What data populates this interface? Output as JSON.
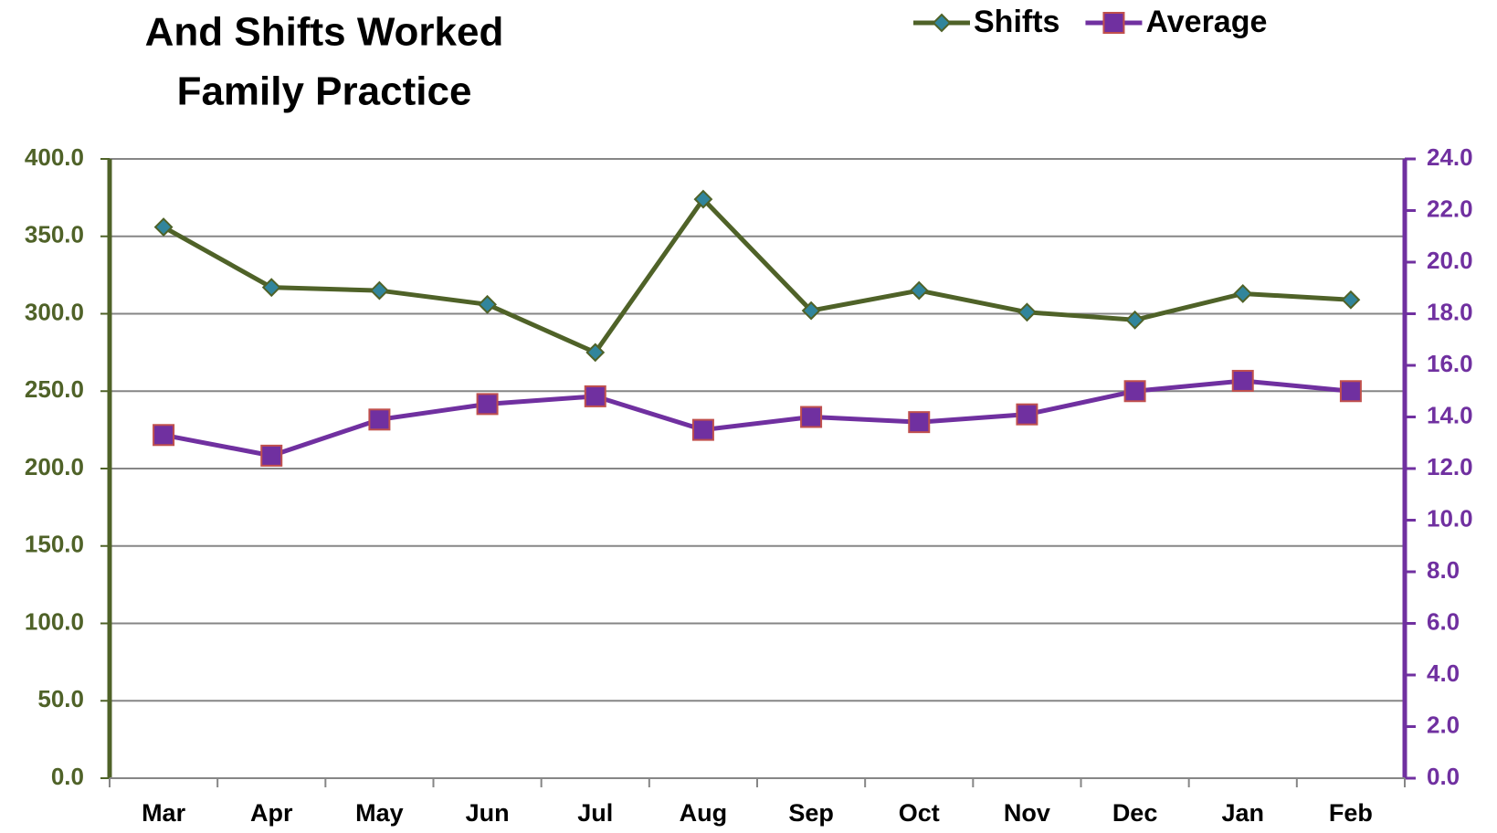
{
  "chart_data": {
    "type": "line",
    "title": [
      "And Shifts Worked",
      "Family Practice"
    ],
    "categories": [
      "Mar",
      "Apr",
      "May",
      "Jun",
      "Jul",
      "Aug",
      "Sep",
      "Oct",
      "Nov",
      "Dec",
      "Jan",
      "Feb"
    ],
    "series": [
      {
        "name": "Shifts",
        "color": "#4f6228",
        "marker_color": "#31859c",
        "marker": "diamond",
        "axis": "y",
        "values": [
          356,
          317,
          315,
          306,
          275,
          374,
          302,
          315,
          301,
          296,
          313,
          309
        ]
      },
      {
        "name": "Average",
        "color": "#7030a0",
        "marker_color": "#c0504d",
        "marker": "square",
        "axis": "y2",
        "values": [
          13.3,
          12.5,
          13.9,
          14.5,
          14.8,
          13.5,
          14.0,
          13.8,
          14.1,
          15.0,
          15.4,
          15.0
        ]
      }
    ],
    "ylim": [
      0,
      400
    ],
    "yticks": [
      {
        "value": 0,
        "label": "0.0"
      },
      {
        "value": 50,
        "label": "50.0"
      },
      {
        "value": 100,
        "label": "100.0"
      },
      {
        "value": 150,
        "label": "150.0"
      },
      {
        "value": 200,
        "label": "200.0"
      },
      {
        "value": 250,
        "label": "250.0"
      },
      {
        "value": 300,
        "label": "300.0"
      },
      {
        "value": 350,
        "label": "350.0"
      },
      {
        "value": 400,
        "label": "400.0"
      }
    ],
    "y2lim": [
      0,
      24
    ],
    "y2ticks": [
      {
        "value": 0,
        "label": "0.0"
      },
      {
        "value": 2,
        "label": "2.0"
      },
      {
        "value": 4,
        "label": "4.0"
      },
      {
        "value": 6,
        "label": "6.0"
      },
      {
        "value": 8,
        "label": "8.0"
      },
      {
        "value": 10,
        "label": "10.0"
      },
      {
        "value": 12,
        "label": "12.0"
      },
      {
        "value": 14,
        "label": "14.0"
      },
      {
        "value": 16,
        "label": "16.0"
      },
      {
        "value": 18,
        "label": "18.0"
      },
      {
        "value": 20,
        "label": "20.0"
      },
      {
        "value": 22,
        "label": "22.0"
      },
      {
        "value": 24,
        "label": "24.0"
      }
    ],
    "grid": true,
    "legend": "top-right"
  }
}
